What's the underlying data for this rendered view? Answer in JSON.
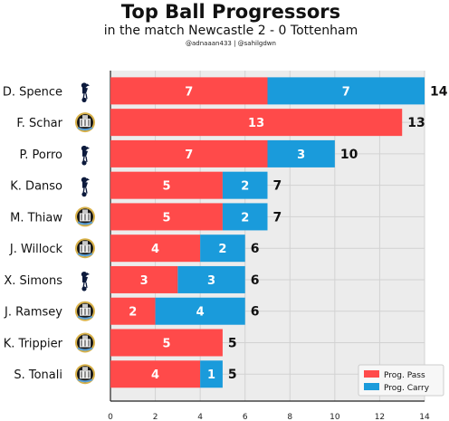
{
  "header": {
    "title": "Top Ball Progressors",
    "subtitle": "in the match Newcastle 2 - 0 Tottenham",
    "credits": "@adnaaan433  | @sahilgdwn"
  },
  "colors": {
    "pass": "#ff4a4a",
    "carry": "#1a9bdb",
    "plot_bg": "#ececec",
    "grid": "#d2d2d2"
  },
  "chart_data": {
    "type": "bar",
    "orientation": "horizontal",
    "stacked": true,
    "categories": [
      "D. Spence",
      "F. Schar",
      "P. Porro",
      "K. Danso",
      "M. Thiaw",
      "J. Willock",
      "X. Simons",
      "J. Ramsey",
      "K. Trippier",
      "S. Tonali"
    ],
    "teams": [
      "Tottenham",
      "Newcastle",
      "Tottenham",
      "Tottenham",
      "Newcastle",
      "Newcastle",
      "Tottenham",
      "Newcastle",
      "Newcastle",
      "Newcastle"
    ],
    "series": [
      {
        "name": "Prog. Pass",
        "values": [
          7,
          13,
          7,
          5,
          5,
          4,
          3,
          2,
          5,
          4
        ]
      },
      {
        "name": "Prog. Carry",
        "values": [
          7,
          0,
          3,
          2,
          2,
          2,
          3,
          4,
          0,
          1
        ]
      }
    ],
    "totals": [
      14,
      13,
      10,
      7,
      7,
      6,
      6,
      6,
      5,
      5
    ],
    "xlim": [
      0,
      14
    ],
    "xticks": [
      0,
      2,
      4,
      6,
      8,
      10,
      12,
      14
    ],
    "grid": true,
    "legend_position": "bottom-right"
  }
}
